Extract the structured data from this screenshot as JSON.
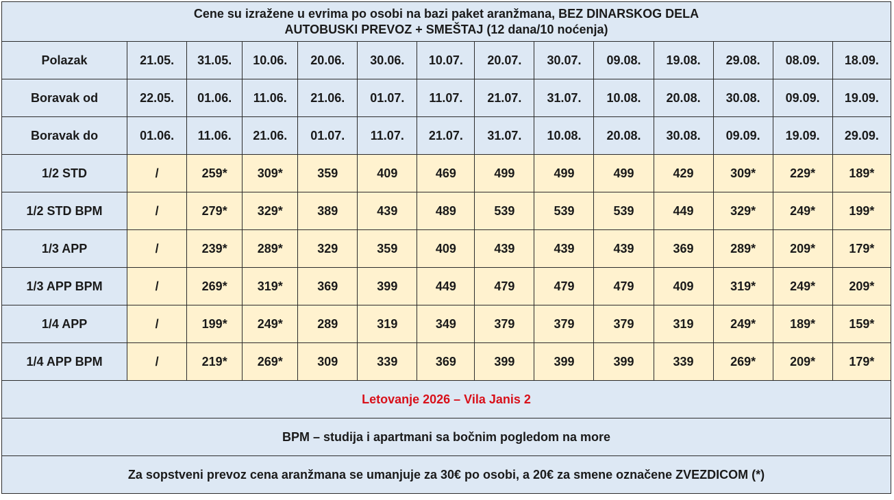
{
  "header": {
    "line1": "Cene su izražene u evrima po osobi na bazi paket aranžmana, BEZ DINARSKOG DELA",
    "line2": "AUTOBUSKI PREVOZ + SMEŠTAJ (12 dana/10 noćenja)"
  },
  "dates": {
    "polazak": {
      "label": "Polazak",
      "values": [
        "21.05.",
        "31.05.",
        "10.06.",
        "20.06.",
        "30.06.",
        "10.07.",
        "20.07.",
        "30.07.",
        "09.08.",
        "19.08.",
        "29.08.",
        "08.09.",
        "18.09."
      ]
    },
    "boravak_od": {
      "label": "Boravak od",
      "values": [
        "22.05.",
        "01.06.",
        "11.06.",
        "21.06.",
        "01.07.",
        "11.07.",
        "21.07.",
        "31.07.",
        "10.08.",
        "20.08.",
        "30.08.",
        "09.09.",
        "19.09."
      ]
    },
    "boravak_do": {
      "label": "Boravak do",
      "values": [
        "01.06.",
        "11.06.",
        "21.06.",
        "01.07.",
        "11.07.",
        "21.07.",
        "31.07.",
        "10.08.",
        "20.08.",
        "30.08.",
        "09.09.",
        "19.09.",
        "29.09."
      ]
    }
  },
  "prices": [
    {
      "label": "1/2 STD",
      "values": [
        "/",
        "259*",
        "309*",
        "359",
        "409",
        "469",
        "499",
        "499",
        "499",
        "429",
        "309*",
        "229*",
        "189*"
      ]
    },
    {
      "label": "1/2 STD BPM",
      "values": [
        "/",
        "279*",
        "329*",
        "389",
        "439",
        "489",
        "539",
        "539",
        "539",
        "449",
        "329*",
        "249*",
        "199*"
      ]
    },
    {
      "label": "1/3 APP",
      "values": [
        "/",
        "239*",
        "289*",
        "329",
        "359",
        "409",
        "439",
        "439",
        "439",
        "369",
        "289*",
        "209*",
        "179*"
      ]
    },
    {
      "label": "1/3 APP BPM",
      "values": [
        "/",
        "269*",
        "319*",
        "369",
        "399",
        "449",
        "479",
        "479",
        "479",
        "409",
        "319*",
        "249*",
        "209*"
      ]
    },
    {
      "label": "1/4 APP",
      "values": [
        "/",
        "199*",
        "249*",
        "289",
        "319",
        "349",
        "379",
        "379",
        "379",
        "319",
        "249*",
        "189*",
        "159*"
      ]
    },
    {
      "label": "1/4 APP BPM",
      "values": [
        "/",
        "219*",
        "269*",
        "309",
        "339",
        "369",
        "399",
        "399",
        "399",
        "339",
        "269*",
        "209*",
        "179*"
      ]
    }
  ],
  "footer": {
    "title": "Letovanje 2026 – Vila Janis 2",
    "bpm_note": "BPM – studija i apartmani sa bočnim pogledom na more",
    "transport_note": "Za sopstveni prevoz cena aranžmana se umanjuje za 30€ po osobi, a 20€ za smene označene ZVEZDICOM (*)"
  },
  "colors": {
    "header_bg": "#dde8f4",
    "price_bg": "#fff2cf",
    "title_red": "#d8101a"
  }
}
